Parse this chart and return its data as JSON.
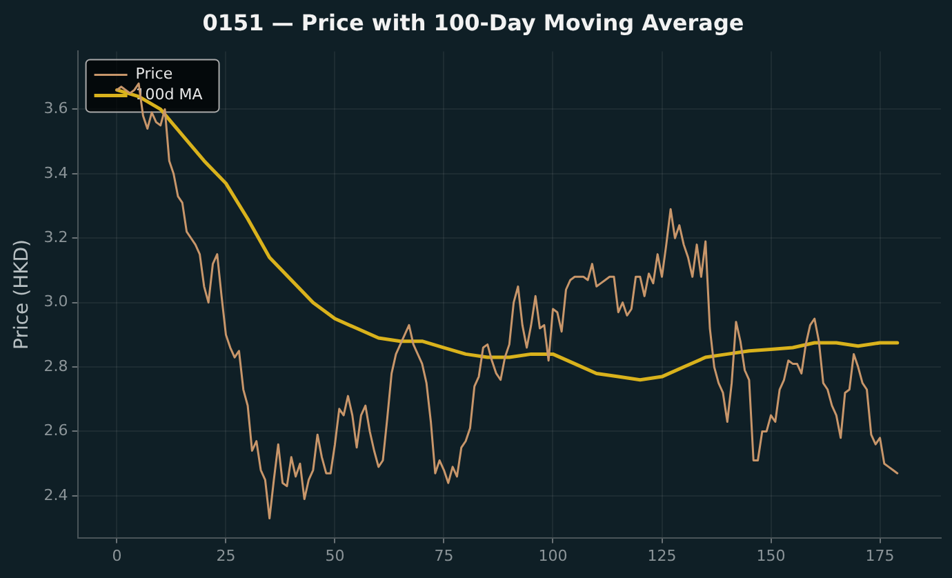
{
  "chart_data": {
    "type": "line",
    "title": "0151 — Price with 100-Day Moving Average",
    "ylabel": "Price (HKD)",
    "xlim": [
      -9,
      189
    ],
    "xticks": [
      0,
      25,
      50,
      75,
      100,
      125,
      150,
      175
    ],
    "ylim": [
      2.27,
      3.78
    ],
    "yticks": [
      2.4,
      2.6,
      2.8,
      {
        "value": 3,
        "label": "3.0"
      },
      3.2,
      3.4,
      3.6
    ],
    "grid": true,
    "legend": "top left",
    "marker": "none",
    "line_style": "solid",
    "series": [
      {
        "name": "Price",
        "color": "#c8966a",
        "x": [
          0,
          1,
          2,
          3,
          4,
          5,
          6,
          7,
          8,
          9,
          10,
          11,
          12,
          13,
          14,
          15,
          16,
          17,
          18,
          19,
          20,
          21,
          22,
          23,
          24,
          25,
          26,
          27,
          28,
          29,
          30,
          31,
          32,
          33,
          34,
          35,
          36,
          37,
          38,
          39,
          40,
          41,
          42,
          43,
          44,
          45,
          46,
          47,
          48,
          49,
          50,
          51,
          52,
          53,
          54,
          55,
          56,
          57,
          58,
          59,
          60,
          61,
          62,
          63,
          64,
          65,
          66,
          67,
          68,
          69,
          70,
          71,
          72,
          73,
          74,
          75,
          76,
          77,
          78,
          79,
          80,
          81,
          82,
          83,
          84,
          85,
          86,
          87,
          88,
          89,
          90,
          91,
          92,
          93,
          94,
          95,
          96,
          97,
          98,
          99,
          100,
          101,
          102,
          103,
          104,
          105,
          106,
          107,
          108,
          109,
          110,
          111,
          112,
          113,
          114,
          115,
          116,
          117,
          118,
          119,
          120,
          121,
          122,
          123,
          124,
          125,
          126,
          127,
          128,
          129,
          130,
          131,
          132,
          133,
          134,
          135,
          136,
          137,
          138,
          139,
          140,
          141,
          142,
          143,
          144,
          145,
          146,
          147,
          148,
          149,
          150,
          151,
          152,
          153,
          154,
          155,
          156,
          157,
          158,
          159,
          160,
          161,
          162,
          163,
          164,
          165,
          166,
          167,
          168,
          169,
          170,
          171,
          172,
          173,
          174,
          175,
          176,
          177,
          178,
          179
        ],
        "values": [
          3.66,
          3.67,
          3.66,
          3.65,
          3.66,
          3.68,
          3.58,
          3.54,
          3.59,
          3.56,
          3.55,
          3.6,
          3.44,
          3.4,
          3.33,
          3.31,
          3.22,
          3.2,
          3.18,
          3.15,
          3.05,
          3.0,
          3.12,
          3.15,
          3.02,
          2.9,
          2.86,
          2.83,
          2.85,
          2.73,
          2.68,
          2.54,
          2.57,
          2.48,
          2.45,
          2.33,
          2.45,
          2.56,
          2.44,
          2.43,
          2.52,
          2.46,
          2.5,
          2.39,
          2.45,
          2.48,
          2.59,
          2.52,
          2.47,
          2.47,
          2.56,
          2.67,
          2.65,
          2.71,
          2.65,
          2.55,
          2.65,
          2.68,
          2.6,
          2.54,
          2.49,
          2.51,
          2.64,
          2.78,
          2.84,
          2.87,
          2.9,
          2.93,
          2.87,
          2.84,
          2.81,
          2.75,
          2.63,
          2.47,
          2.51,
          2.48,
          2.44,
          2.49,
          2.46,
          2.55,
          2.57,
          2.61,
          2.74,
          2.77,
          2.86,
          2.87,
          2.82,
          2.78,
          2.76,
          2.83,
          2.87,
          3.0,
          3.05,
          2.93,
          2.86,
          2.93,
          3.02,
          2.92,
          2.93,
          2.82,
          2.98,
          2.97,
          2.91,
          3.04,
          3.07,
          3.08,
          3.08,
          3.08,
          3.07,
          3.12,
          3.05,
          3.06,
          3.07,
          3.08,
          3.08,
          2.97,
          3.0,
          2.96,
          2.98,
          3.08,
          3.08,
          3.02,
          3.09,
          3.06,
          3.15,
          3.08,
          3.18,
          3.29,
          3.2,
          3.24,
          3.18,
          3.14,
          3.08,
          3.18,
          3.08,
          3.19,
          2.92,
          2.8,
          2.75,
          2.72,
          2.63,
          2.75,
          2.94,
          2.88,
          2.79,
          2.76,
          2.51,
          2.51,
          2.6,
          2.6,
          2.65,
          2.63,
          2.73,
          2.76,
          2.82,
          2.81,
          2.81,
          2.78,
          2.87,
          2.93,
          2.95,
          2.88,
          2.75,
          2.73,
          2.68,
          2.65,
          2.58,
          2.72,
          2.73,
          2.84,
          2.8,
          2.75,
          2.73,
          2.59,
          2.56,
          2.58,
          2.5,
          2.49,
          2.48,
          2.47
        ]
      },
      {
        "name": "100d MA",
        "color": "#d9b21c",
        "x": [
          0,
          5,
          10,
          15,
          20,
          25,
          30,
          35,
          40,
          45,
          50,
          55,
          60,
          65,
          70,
          75,
          80,
          85,
          90,
          95,
          100,
          105,
          110,
          115,
          120,
          125,
          130,
          135,
          140,
          145,
          150,
          155,
          160,
          165,
          170,
          175,
          179
        ],
        "values": [
          3.66,
          3.64,
          3.6,
          3.52,
          3.44,
          3.37,
          3.26,
          3.14,
          3.07,
          3.0,
          2.95,
          2.92,
          2.89,
          2.88,
          2.88,
          2.86,
          2.84,
          2.83,
          2.83,
          2.84,
          2.84,
          2.81,
          2.78,
          2.77,
          2.76,
          2.77,
          2.8,
          2.83,
          2.84,
          2.85,
          2.855,
          2.86,
          2.875,
          2.875,
          2.865,
          2.875,
          2.875
        ]
      }
    ]
  }
}
